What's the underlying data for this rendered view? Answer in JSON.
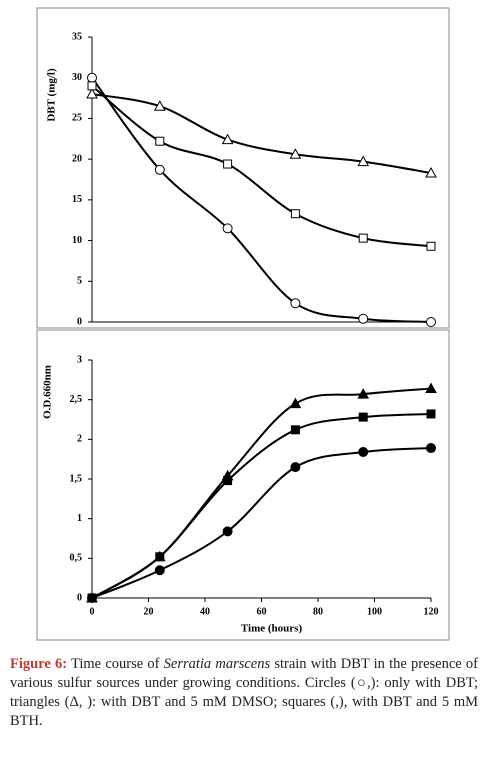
{
  "chart_data": [
    {
      "type": "line",
      "y_label": "DBT (mg/l)",
      "x": [
        0,
        24,
        48,
        72,
        96,
        120
      ],
      "xlim": [
        0,
        120
      ],
      "ylim": [
        0,
        35
      ],
      "yticks": [
        0,
        5,
        10,
        15,
        20,
        25,
        30,
        35
      ],
      "series": [
        {
          "marker": "circle",
          "color": "#000000",
          "fill": "#ffffff",
          "values": [
            30,
            18.7,
            11.5,
            2.3,
            0.4,
            0
          ]
        },
        {
          "marker": "triangle",
          "color": "#000000",
          "fill": "#ffffff",
          "values": [
            28,
            26.5,
            22.4,
            20.6,
            19.7,
            18.3
          ]
        },
        {
          "marker": "square",
          "color": "#000000",
          "fill": "#ffffff",
          "values": [
            29,
            22.2,
            19.4,
            13.3,
            10.3,
            9.3
          ]
        }
      ]
    },
    {
      "type": "line",
      "y_label": "O.D.660nm",
      "x_label": "Time (hours)",
      "x": [
        0,
        24,
        48,
        72,
        96,
        120
      ],
      "xlim": [
        0,
        120
      ],
      "xticks": [
        0,
        20,
        40,
        60,
        80,
        100,
        120
      ],
      "ylim": [
        0,
        3
      ],
      "yticks": [
        0,
        {
          "value": 0.5,
          "label": "0,5"
        },
        1,
        {
          "value": 1.5,
          "label": "1,5"
        },
        2,
        {
          "value": 2.5,
          "label": "2,5"
        },
        3
      ],
      "series": [
        {
          "marker": "circle",
          "color": "#000000",
          "fill": "#000000",
          "values": [
            0,
            0.35,
            0.84,
            1.65,
            1.84,
            1.89
          ]
        },
        {
          "marker": "triangle",
          "color": "#000000",
          "fill": "#000000",
          "values": [
            0,
            0.52,
            1.54,
            2.45,
            2.57,
            2.64
          ]
        },
        {
          "marker": "square",
          "color": "#000000",
          "fill": "#000000",
          "values": [
            0,
            0.52,
            1.48,
            2.12,
            2.28,
            2.32
          ]
        }
      ]
    }
  ],
  "caption": {
    "label": "Figure 6:",
    "text_before": "Time course of",
    "species": "Serratia marscens",
    "text_after": "strain with DBT in the presence of various sulfur sources under growing conditions. Circles (○,): only with DBT; triangles (Δ, ): with DBT and 5 mM DMSO; squares (,), with DBT and 5 mM BTH."
  }
}
